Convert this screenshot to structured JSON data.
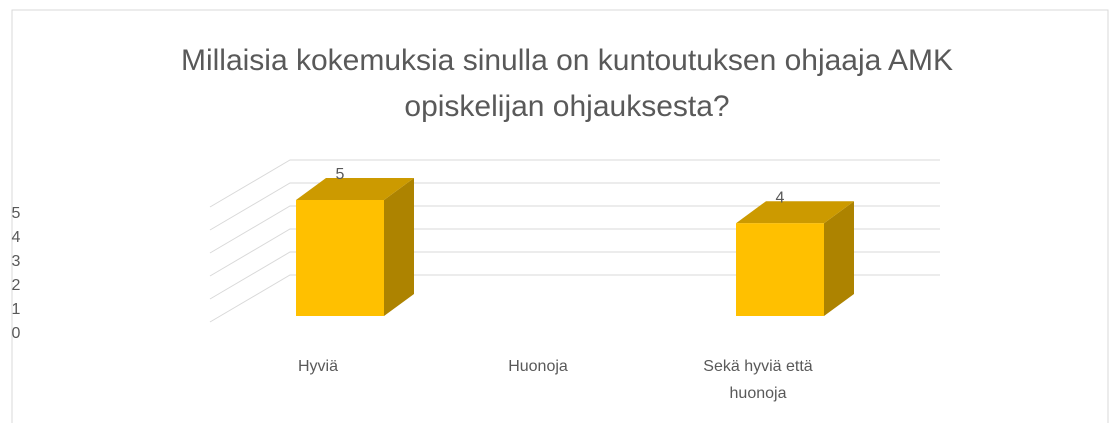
{
  "chart_data": {
    "type": "bar3d",
    "title": "Millaisia kokemuksia sinulla on kuntoutuksen ohjaaja AMK opiskelijan ohjauksesta?",
    "categories": [
      "Hyviä",
      "Huonoja",
      "Sekä hyviä että huonoja"
    ],
    "values": [
      5,
      0,
      4
    ],
    "color": "#ffc000",
    "ylim": [
      0,
      5
    ],
    "yticks": [
      0,
      1,
      2,
      3,
      4,
      5
    ],
    "grid": true
  }
}
